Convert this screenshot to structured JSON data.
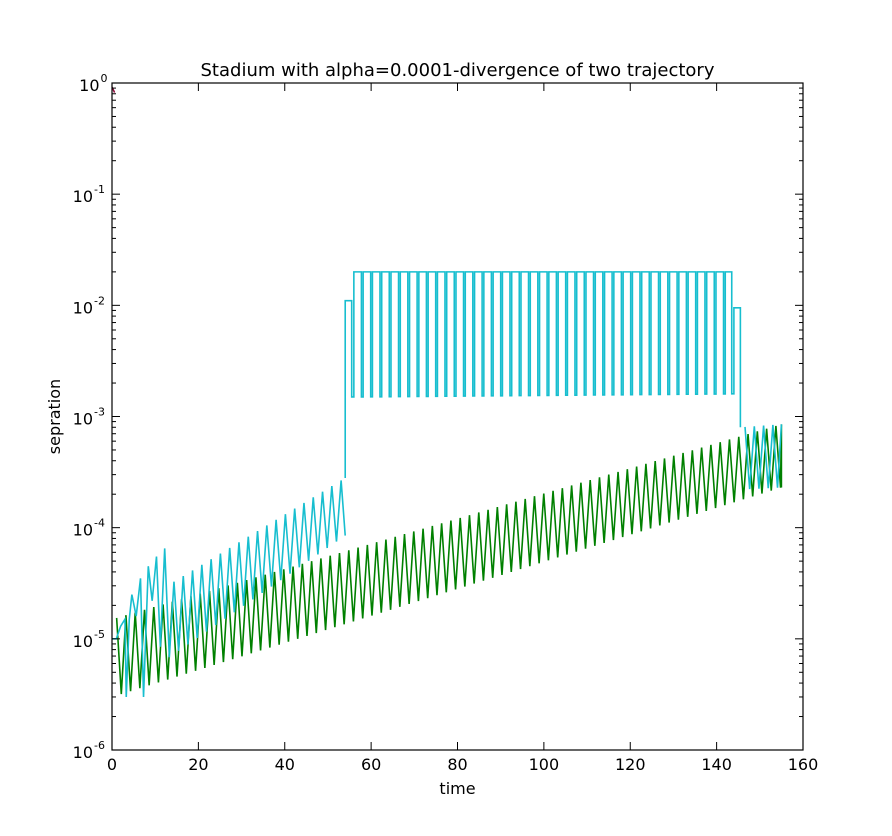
{
  "chart_data": {
    "type": "line",
    "title": "Stadium with alpha=0.0001-divergence of two trajectory",
    "xlabel": "time",
    "ylabel": "sepration",
    "xlim": [
      0,
      160
    ],
    "ylim": [
      1e-06,
      1
    ],
    "yscale": "log",
    "grid": false,
    "legend": "none",
    "xticks": [
      {
        "value": 0,
        "label": "0"
      },
      {
        "value": 20,
        "label": "20"
      },
      {
        "value": 40,
        "label": "40"
      },
      {
        "value": 60,
        "label": "60"
      },
      {
        "value": 80,
        "label": "80"
      },
      {
        "value": 100,
        "label": "100"
      },
      {
        "value": 120,
        "label": "120"
      },
      {
        "value": 140,
        "label": "140"
      },
      {
        "value": 160,
        "label": "160"
      }
    ],
    "yticks": [
      {
        "value": 1e-06,
        "base": "10",
        "exp": "-6"
      },
      {
        "value": 1e-05,
        "base": "10",
        "exp": "-5"
      },
      {
        "value": 0.0001,
        "base": "10",
        "exp": "-4"
      },
      {
        "value": 0.001,
        "base": "10",
        "exp": "-3"
      },
      {
        "value": 0.01,
        "base": "10",
        "exp": "-2"
      },
      {
        "value": 0.1,
        "base": "10",
        "exp": "-1"
      },
      {
        "value": 1,
        "base": "10",
        "exp": "0"
      }
    ],
    "series": [
      {
        "color": "#008000",
        "kind": "oscillation",
        "x_start": 0,
        "x_end": 155,
        "period": 2.15,
        "upper_start": 1.5e-05,
        "upper_end": 0.00085,
        "lower_start": 3e-06,
        "lower_end": 0.00023,
        "end_value": 0.00023
      },
      {
        "color": "#17becf",
        "kind": "oscillation",
        "x_start": 0,
        "x_end": 54,
        "period": 2.15,
        "upper_start": 1.5e-05,
        "upper_end": 0.00028,
        "lower_start": 3e-06,
        "lower_end": 8.5e-05,
        "start_points": [
          [
            0,
            1e-05
          ],
          [
            1,
            1e-05
          ],
          [
            2,
            1.3e-05
          ],
          [
            3,
            1.5e-05
          ],
          [
            3.3,
            3e-06
          ],
          [
            4,
            1.5e-05
          ],
          [
            4.6,
            2.5e-05
          ],
          [
            5.6,
            1.6e-05
          ],
          [
            6.6,
            3.5e-05
          ],
          [
            7.3,
            3e-06
          ],
          [
            8.4,
            4.5e-05
          ],
          [
            9.3,
            2.2e-05
          ],
          [
            10.3,
            5.5e-05
          ],
          [
            11.2,
            8.5e-06
          ],
          [
            12.2,
            6.5e-05
          ]
        ]
      },
      {
        "color": "#17becf",
        "kind": "square",
        "points": [
          [
            54,
            0.00028
          ],
          [
            54,
            0.011
          ],
          [
            55.5,
            0.011
          ],
          [
            55.5,
            0.0015
          ],
          [
            56,
            0.0015
          ],
          [
            56,
            0.02
          ]
        ],
        "square_x_start": 56,
        "square_x_end": 143.5,
        "square_period": 2.15,
        "square_high": 0.02,
        "square_low_start": 0.0015,
        "square_low_end": 0.0016,
        "tail_points": [
          [
            143.5,
            0.02
          ],
          [
            143.5,
            0.0016
          ],
          [
            144,
            0.0016
          ],
          [
            144,
            0.0095
          ],
          [
            145.5,
            0.0095
          ],
          [
            145.5,
            0.0008
          ]
        ]
      },
      {
        "color": "#17becf",
        "kind": "oscillation",
        "x_start": 145.5,
        "x_end": 155,
        "period": 2.15,
        "upper_start": 0.0008,
        "upper_end": 0.00085,
        "lower_start": 0.00022,
        "lower_end": 0.00023
      },
      {
        "color": "#8b0a3a",
        "kind": "points",
        "points": [
          [
            0,
            0.92
          ],
          [
            0.6,
            0.82
          ]
        ]
      }
    ]
  }
}
